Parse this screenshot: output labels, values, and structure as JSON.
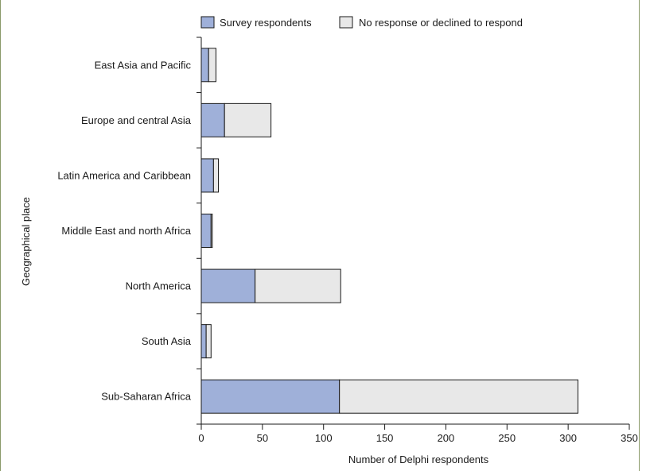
{
  "chart_data": {
    "type": "bar",
    "orientation": "horizontal",
    "stacked": true,
    "categories": [
      "East Asia and Pacific",
      "Europe and central Asia",
      "Latin America and Caribbean",
      "Middle East and north Africa",
      "North America",
      "South Asia",
      "Sub-Saharan Africa"
    ],
    "series": [
      {
        "name": "Survey respondents",
        "values": [
          6,
          19,
          10,
          8,
          44,
          4,
          113
        ],
        "color": "#9fb0d9"
      },
      {
        "name": "No response or declined to respond",
        "values": [
          6,
          38,
          4,
          1,
          70,
          4,
          195
        ],
        "color": "#e8e8e8"
      }
    ],
    "xlabel": "Number of Delphi respondents",
    "ylabel": "Geographical place",
    "xlim": [
      0,
      350
    ],
    "xticks": [
      0,
      50,
      100,
      150,
      200,
      250,
      300,
      350
    ],
    "grid": false,
    "legend_position": "top"
  },
  "colors": {
    "frame_border": "#8a9a6a",
    "axis": "#1a1a1a"
  }
}
